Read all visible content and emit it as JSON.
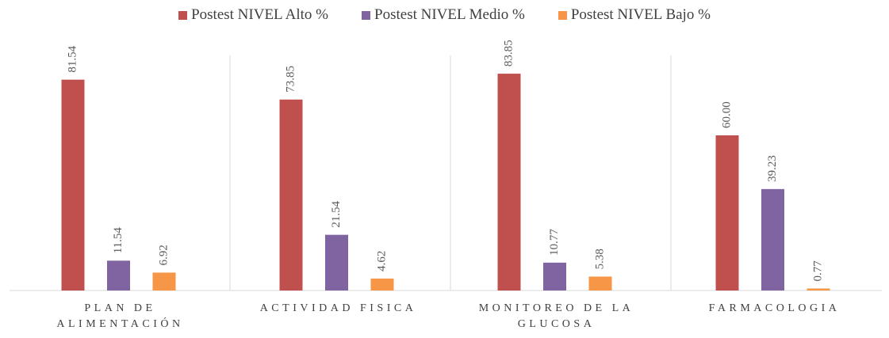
{
  "chart_data": {
    "type": "bar",
    "categories": [
      "PLAN DE ALIMENTACIÓN",
      "ACTIVIDAD FISICA",
      "MONITOREO DE LA GLUCOSA",
      "FARMACOLOGIA"
    ],
    "series": [
      {
        "name": "Postest NIVEL Alto %",
        "color": "#c0504d",
        "values": [
          81.54,
          73.85,
          83.85,
          60
        ],
        "value_labels": [
          "81.54",
          "73.85",
          "83.85",
          "60.00"
        ]
      },
      {
        "name": "Postest NIVEL Medio %",
        "color": "#8064a2",
        "values": [
          11.54,
          21.54,
          10.77,
          39.23
        ],
        "value_labels": [
          "11.54",
          "21.54",
          "10.77",
          "39.23"
        ]
      },
      {
        "name": "Postest NIVEL Bajo %",
        "color": "#f79646",
        "values": [
          6.92,
          4.62,
          5.38,
          0.77
        ],
        "value_labels": [
          "6.92",
          "4.62",
          "5.38",
          "0.77"
        ]
      }
    ],
    "ylim": [
      0,
      90
    ],
    "legend": "top"
  }
}
